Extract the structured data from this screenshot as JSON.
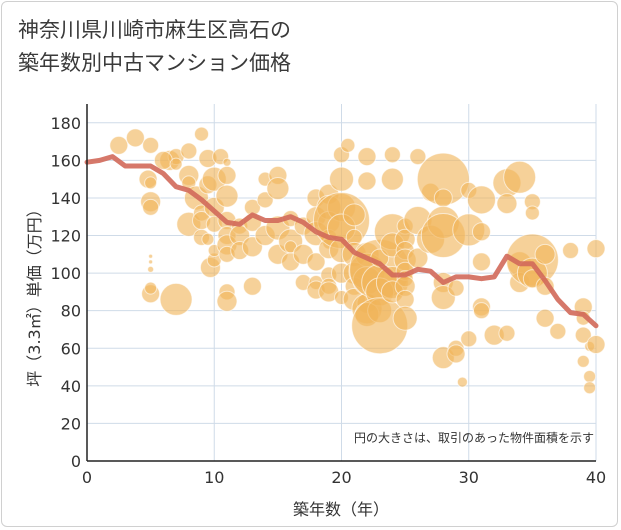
{
  "chart_data": {
    "type": "scatter",
    "title": "神奈川県川崎市麻生区高石の\n築年数別中古マンション価格",
    "xlabel": "築年数（年）",
    "ylabel": "坪（3.3㎡）単価（万円）",
    "note": "円の大きさは、取引のあった物件面積を示す",
    "xlim": [
      0,
      40
    ],
    "ylim": [
      0,
      190
    ],
    "xticks": [
      0,
      10,
      20,
      30,
      40
    ],
    "yticks": [
      0,
      20,
      40,
      60,
      80,
      100,
      120,
      140,
      160,
      180
    ],
    "grid": true,
    "colors": {
      "bubble": "#f0b45a",
      "line": "#d2695a",
      "grid": "#cfdbe8",
      "axis": "#222222"
    },
    "series": [
      {
        "type": "line",
        "x": [
          0,
          1,
          2,
          3,
          4,
          5,
          6,
          7,
          8,
          9,
          10,
          11,
          12,
          13,
          14,
          15,
          16,
          17,
          18,
          19,
          20,
          21,
          22,
          23,
          24,
          25,
          26,
          27,
          28,
          29,
          30,
          31,
          32,
          33,
          34,
          35,
          36,
          37,
          38,
          39,
          40
        ],
        "values": [
          159,
          160,
          162,
          157,
          157,
          157,
          153,
          146,
          144,
          139,
          133,
          127,
          126,
          131,
          128,
          128,
          130,
          127,
          122,
          119,
          118,
          111,
          108,
          105,
          99,
          99,
          102,
          101,
          95,
          98,
          98,
          97,
          98,
          109,
          105,
          105,
          96,
          86,
          79,
          78,
          72
        ]
      },
      {
        "type": "bubble",
        "points": [
          [
            2.5,
            168,
            9
          ],
          [
            3.8,
            172,
            9
          ],
          [
            5,
            168,
            8
          ],
          [
            6.5,
            160,
            10
          ],
          [
            7,
            162,
            8
          ],
          [
            8,
            165,
            8
          ],
          [
            9,
            174,
            7
          ],
          [
            4.8,
            150,
            9
          ],
          [
            5,
            148,
            6
          ],
          [
            5,
            138,
            10
          ],
          [
            5,
            135,
            8
          ],
          [
            5,
            109,
            2
          ],
          [
            5,
            106,
            2
          ],
          [
            5,
            102,
            3
          ],
          [
            5,
            89,
            9
          ],
          [
            5,
            92,
            6
          ],
          [
            6,
            160,
            9
          ],
          [
            7,
            158,
            6
          ],
          [
            7,
            86,
            16
          ],
          [
            8,
            152,
            10
          ],
          [
            8,
            148,
            7
          ],
          [
            8,
            126,
            12
          ],
          [
            8.6,
            140,
            12
          ],
          [
            9,
            132,
            8
          ],
          [
            9,
            128,
            9
          ],
          [
            9,
            119,
            8
          ],
          [
            9.5,
            161,
            9
          ],
          [
            9.5,
            147,
            9
          ],
          [
            9.5,
            118,
            6
          ],
          [
            10,
            150,
            12
          ],
          [
            10,
            135,
            10
          ],
          [
            10,
            126,
            8
          ],
          [
            9.7,
            103,
            10
          ],
          [
            10,
            107,
            7
          ],
          [
            10,
            112,
            6
          ],
          [
            10.5,
            162,
            8
          ],
          [
            11,
            152,
            9
          ],
          [
            11,
            159,
            4
          ],
          [
            11,
            141,
            11
          ],
          [
            11,
            128,
            9
          ],
          [
            11,
            120,
            9
          ],
          [
            11,
            115,
            10
          ],
          [
            11,
            110,
            8
          ],
          [
            11,
            90,
            8
          ],
          [
            11,
            85,
            10
          ],
          [
            12,
            125,
            8
          ],
          [
            12,
            120,
            10
          ],
          [
            12,
            112,
            9
          ],
          [
            13,
            135,
            8
          ],
          [
            13,
            127,
            9
          ],
          [
            13,
            114,
            10
          ],
          [
            13,
            93,
            9
          ],
          [
            14,
            139,
            8
          ],
          [
            14,
            150,
            7
          ],
          [
            14,
            120,
            10
          ],
          [
            15,
            152,
            9
          ],
          [
            15,
            145,
            11
          ],
          [
            15,
            124,
            12
          ],
          [
            15,
            110,
            10
          ],
          [
            16,
            129,
            8
          ],
          [
            16,
            117,
            12
          ],
          [
            16,
            106,
            9
          ],
          [
            16,
            114,
            6
          ],
          [
            17,
            125,
            9
          ],
          [
            17,
            110,
            10
          ],
          [
            17,
            95,
            8
          ],
          [
            18,
            140,
            9
          ],
          [
            18,
            130,
            10
          ],
          [
            18,
            121,
            12
          ],
          [
            18,
            106,
            9
          ],
          [
            18,
            95,
            7
          ],
          [
            18,
            91,
            9
          ],
          [
            19,
            142,
            10
          ],
          [
            19,
            135,
            12
          ],
          [
            19,
            127,
            11
          ],
          [
            19,
            119,
            8
          ],
          [
            19,
            116,
            6
          ],
          [
            19,
            113,
            10
          ],
          [
            19,
            99,
            8
          ],
          [
            19,
            93,
            8
          ],
          [
            19,
            90,
            10
          ],
          [
            20,
            150,
            12
          ],
          [
            20,
            135,
            14
          ],
          [
            20,
            128,
            28
          ],
          [
            20,
            124,
            14
          ],
          [
            20,
            112,
            12
          ],
          [
            20,
            100,
            10
          ],
          [
            20,
            87,
            7
          ],
          [
            20,
            163,
            8
          ],
          [
            20.5,
            168,
            7
          ],
          [
            21,
            131,
            11
          ],
          [
            21,
            119,
            8
          ],
          [
            21,
            110,
            12
          ],
          [
            21,
            100,
            11
          ],
          [
            21,
            93,
            9
          ],
          [
            21,
            86,
            11
          ],
          [
            22,
            162,
            9
          ],
          [
            22,
            149,
            9
          ],
          [
            22,
            110,
            12
          ],
          [
            22,
            101,
            18
          ],
          [
            22,
            96,
            14
          ],
          [
            22,
            84,
            10
          ],
          [
            22,
            81,
            15
          ],
          [
            22,
            78,
            12
          ],
          [
            23,
            102,
            30
          ],
          [
            23,
            95,
            18
          ],
          [
            23,
            90,
            14
          ],
          [
            23,
            80,
            12
          ],
          [
            23,
            72,
            28
          ],
          [
            23,
            108,
            9
          ],
          [
            24,
            163,
            8
          ],
          [
            24,
            150,
            11
          ],
          [
            24,
            122,
            18
          ],
          [
            24,
            115,
            12
          ],
          [
            24,
            95,
            16
          ],
          [
            24,
            90,
            11
          ],
          [
            25,
            125,
            8
          ],
          [
            25,
            118,
            10
          ],
          [
            25,
            112,
            9
          ],
          [
            25,
            107,
            11
          ],
          [
            25,
            101,
            9
          ],
          [
            25,
            97,
            8
          ],
          [
            25,
            93,
            10
          ],
          [
            25,
            86,
            9
          ],
          [
            25,
            76,
            12
          ],
          [
            26,
            162,
            8
          ],
          [
            26,
            128,
            14
          ],
          [
            26,
            108,
            10
          ],
          [
            27,
            143,
            9
          ],
          [
            27,
            118,
            14
          ],
          [
            28,
            150,
            26
          ],
          [
            28,
            140,
            9
          ],
          [
            28,
            127,
            16
          ],
          [
            28,
            120,
            22
          ],
          [
            28,
            95,
            10
          ],
          [
            28,
            87,
            12
          ],
          [
            28,
            55,
            11
          ],
          [
            29,
            92,
            8
          ],
          [
            29,
            60,
            8
          ],
          [
            29,
            57,
            9
          ],
          [
            29.5,
            42,
            5
          ],
          [
            30,
            144,
            8
          ],
          [
            30,
            123,
            16
          ],
          [
            30,
            65,
            8
          ],
          [
            31,
            139,
            14
          ],
          [
            31,
            122,
            9
          ],
          [
            31,
            106,
            9
          ],
          [
            31,
            82,
            9
          ],
          [
            31,
            80,
            8
          ],
          [
            32,
            67,
            10
          ],
          [
            33,
            148,
            14
          ],
          [
            33,
            137,
            10
          ],
          [
            33,
            68,
            8
          ],
          [
            34,
            151,
            16
          ],
          [
            34,
            105,
            12
          ],
          [
            34,
            95,
            10
          ],
          [
            35,
            107,
            26
          ],
          [
            35,
            100,
            15
          ],
          [
            35,
            138,
            8
          ],
          [
            35,
            132,
            7
          ],
          [
            35,
            97,
            9
          ],
          [
            36,
            110,
            10
          ],
          [
            36,
            93,
            9
          ],
          [
            36,
            76,
            9
          ],
          [
            37,
            69,
            8
          ],
          [
            38,
            112,
            8
          ],
          [
            39,
            82,
            9
          ],
          [
            39,
            76,
            7
          ],
          [
            39,
            67,
            8
          ],
          [
            39,
            53,
            6
          ],
          [
            39.5,
            61,
            5
          ],
          [
            39.5,
            45,
            6
          ],
          [
            39.5,
            39,
            6
          ],
          [
            40,
            113,
            9
          ],
          [
            40,
            62,
            9
          ]
        ]
      }
    ]
  }
}
